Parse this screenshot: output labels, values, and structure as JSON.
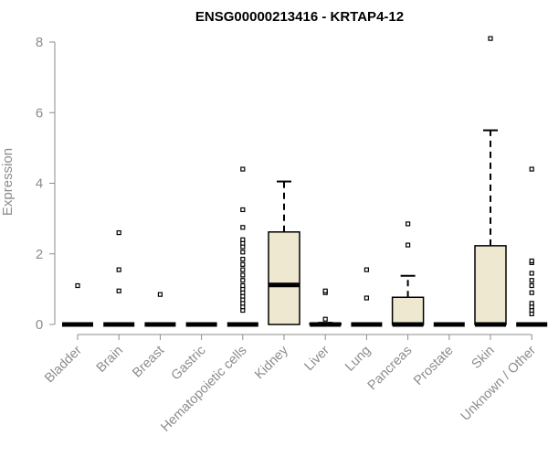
{
  "chart_data": {
    "type": "box",
    "title": "ENSG00000213416 - KRTAP4-12",
    "xlabel": "",
    "ylabel": "Expression",
    "ylim": [
      0,
      8
    ],
    "yticks": [
      0,
      2,
      4,
      6,
      8
    ],
    "grid": false,
    "box_color": "#ede8cf",
    "categories": [
      "Bladder",
      "Brain",
      "Breast",
      "Gastric",
      "Hematopoietic cells",
      "Kidney",
      "Liver",
      "Lung",
      "Pancreas",
      "Prostate",
      "Skin",
      "Unknown / Other"
    ],
    "boxes": [
      {
        "category": "Bladder",
        "q1": 0,
        "median": 0,
        "q3": 0,
        "whisker_low": 0,
        "whisker_high": 0,
        "outliers": [
          1.1
        ]
      },
      {
        "category": "Brain",
        "q1": 0,
        "median": 0,
        "q3": 0,
        "whisker_low": 0,
        "whisker_high": 0,
        "outliers": [
          0.95,
          1.55,
          2.6
        ]
      },
      {
        "category": "Breast",
        "q1": 0,
        "median": 0,
        "q3": 0,
        "whisker_low": 0,
        "whisker_high": 0,
        "outliers": [
          0.85
        ]
      },
      {
        "category": "Gastric",
        "q1": 0,
        "median": 0,
        "q3": 0,
        "whisker_low": 0,
        "whisker_high": 0,
        "outliers": []
      },
      {
        "category": "Hematopoietic cells",
        "q1": 0,
        "median": 0,
        "q3": 0,
        "whisker_low": 0,
        "whisker_high": 0,
        "outliers": [
          0.4,
          0.5,
          0.6,
          0.7,
          0.8,
          0.9,
          1.0,
          1.1,
          1.25,
          1.4,
          1.55,
          1.7,
          1.85,
          2.05,
          2.2,
          2.3,
          2.4,
          2.75,
          3.25,
          4.4
        ]
      },
      {
        "category": "Kidney",
        "q1": 0,
        "median": 1.12,
        "q3": 2.62,
        "whisker_low": 0,
        "whisker_high": 4.05,
        "outliers": []
      },
      {
        "category": "Liver",
        "q1": 0,
        "median": 0,
        "q3": 0.03,
        "whisker_low": 0,
        "whisker_high": 0.05,
        "outliers": [
          0.15,
          0.9,
          0.95
        ]
      },
      {
        "category": "Lung",
        "q1": 0,
        "median": 0,
        "q3": 0,
        "whisker_low": 0,
        "whisker_high": 0,
        "outliers": [
          0.75,
          1.55
        ]
      },
      {
        "category": "Pancreas",
        "q1": 0,
        "median": 0,
        "q3": 0.77,
        "whisker_low": 0,
        "whisker_high": 1.38,
        "outliers": [
          2.25,
          2.85
        ]
      },
      {
        "category": "Prostate",
        "q1": 0,
        "median": 0,
        "q3": 0,
        "whisker_low": 0,
        "whisker_high": 0,
        "outliers": []
      },
      {
        "category": "Skin",
        "q1": 0,
        "median": 0,
        "q3": 2.23,
        "whisker_low": 0,
        "whisker_high": 5.5,
        "outliers": [
          8.1
        ]
      },
      {
        "category": "Unknown / Other",
        "q1": 0,
        "median": 0,
        "q3": 0,
        "whisker_low": 0,
        "whisker_high": 0,
        "outliers": [
          0.3,
          0.4,
          0.5,
          0.6,
          0.9,
          1.1,
          1.25,
          1.45,
          1.75,
          1.8,
          4.4
        ]
      }
    ]
  }
}
